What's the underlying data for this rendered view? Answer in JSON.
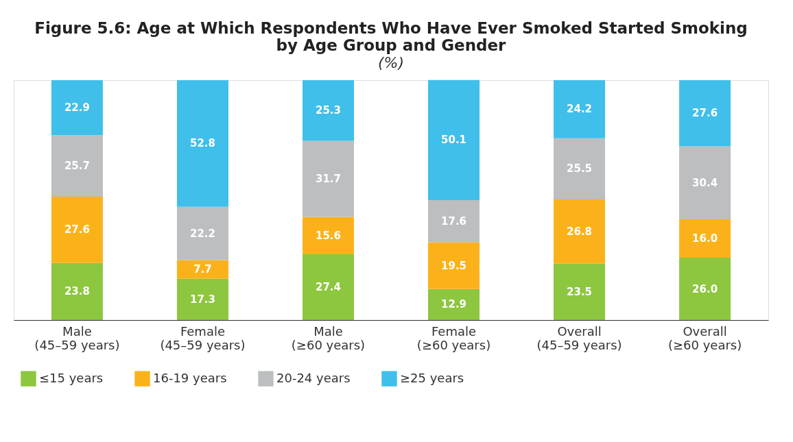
{
  "chart_data": {
    "type": "bar",
    "stacked": true,
    "title": "Figure 5.6: Age at Which Respondents Who Have Ever Smoked Started Smoking\nby Age Group and Gender",
    "subtitle": "(%)",
    "categories": [
      "Male\n(45–59 years)",
      "Female\n(45–59 years)",
      "Male\n(≥60 years)",
      "Female\n(≥60 years)",
      "Overall\n(45–59 years)",
      "Overall\n(≥60 years)"
    ],
    "series": [
      {
        "name": "≤15 years",
        "color": "#8dc63f",
        "values": [
          23.8,
          17.3,
          27.4,
          12.9,
          23.5,
          26.0
        ],
        "value_labels": [
          "23.8",
          "17.3",
          "27.4",
          "12.9",
          "23.5",
          "26.0"
        ]
      },
      {
        "name": "16-19 years",
        "color": "#fbb21a",
        "values": [
          27.6,
          7.7,
          15.6,
          19.5,
          26.8,
          16.0
        ],
        "value_labels": [
          "27.6",
          "7.7",
          "15.6",
          "19.5",
          "26.8",
          "16.0"
        ]
      },
      {
        "name": "20-24 years",
        "color": "#bcbec0",
        "values": [
          25.7,
          22.2,
          31.7,
          17.6,
          25.5,
          30.4
        ],
        "value_labels": [
          "25.7",
          "22.2",
          "31.7",
          "17.6",
          "25.5",
          "30.4"
        ]
      },
      {
        "name": "≥25 years",
        "color": "#3fbfea",
        "values": [
          22.9,
          52.8,
          25.3,
          50.1,
          24.2,
          27.6
        ],
        "value_labels": [
          "22.9",
          "52.8",
          "25.3",
          "50.1",
          "24.2",
          "27.6"
        ]
      }
    ],
    "ylim": [
      0,
      100
    ],
    "tick_labels": "x",
    "legend": "bottom",
    "grid": false
  }
}
